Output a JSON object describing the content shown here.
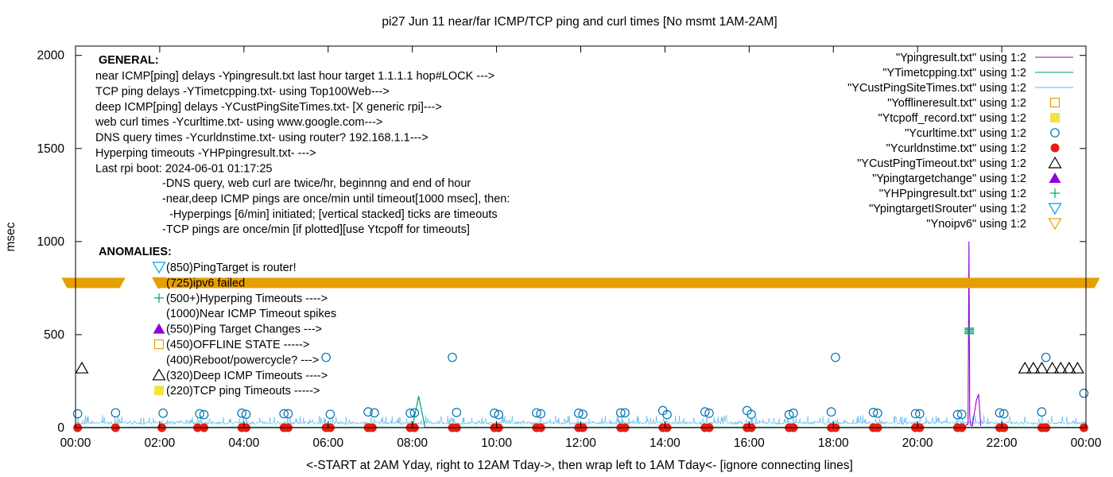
{
  "chart_data": {
    "type": "scatter",
    "title": "pi27 Jun 11  near/far ICMP/TCP ping and curl times [No msmt 1AM-2AM]",
    "xlabel": "<-START at 2AM Yday, right to 12AM Tday->, then wrap left to 1AM Tday<- [ignore connecting lines]",
    "ylabel": "msec",
    "xlim": [
      0,
      24
    ],
    "ylim": [
      0,
      2050
    ],
    "x_ticks": [
      0,
      2,
      4,
      6,
      8,
      10,
      12,
      14,
      16,
      18,
      20,
      22,
      24
    ],
    "x_tick_labels": [
      "00:00",
      "02:00",
      "04:00",
      "06:00",
      "08:00",
      "10:00",
      "12:00",
      "14:00",
      "16:00",
      "18:00",
      "20:00",
      "22:00",
      "00:00"
    ],
    "y_ticks": [
      0,
      500,
      1000,
      1500,
      2000
    ],
    "y_tick_labels": [
      "0",
      "500",
      "1000",
      "1500",
      "2000"
    ],
    "grid": false,
    "legend_position": "top-right",
    "notes": {
      "general_heading": "GENERAL:",
      "general_lines": [
        "near ICMP[ping] delays -Ypingresult.txt last hour target 1.1.1.1 hop#LOCK --->",
        "TCP ping delays -YTimetcpping.txt- using Top100Web--->",
        "deep ICMP[ping] delays -YCustPingSiteTimes.txt- [X generic rpi]--->",
        "web curl times -Ycurltime.txt- using www.google.com--->",
        "DNS query times -Ycurldnstime.txt- using router? 192.168.1.1--->",
        "Hyperping timeouts -YHPpingresult.txt- --->",
        "Last rpi boot: 2024-06-01 01:17:25"
      ],
      "indented_lines": [
        "-DNS query, web curl are twice/hr, beginnng and end of hour",
        "-near,deep ICMP pings are once/min until timeout[1000 msec], then:",
        "-Hyperpings [6/min] initiated; [vertical stacked] ticks are timeouts",
        "-TCP pings are once/min [if plotted][use Ytcpoff for timeouts]"
      ],
      "anomalies_heading": "ANOMALIES:",
      "anomalies": [
        {
          "text": "(850)PingTarget is router!",
          "marker": "triangle-down-open",
          "color": "#009fd4"
        },
        {
          "text": "(725)ipv6 failed",
          "marker": "triangle-down-open",
          "color": "#e69f00"
        },
        {
          "text": "(500+)Hyperping Timeouts ---->",
          "marker": "plus",
          "color": "#009e73"
        },
        {
          "text": "(1000)Near ICMP Timeout spikes",
          "marker": "none",
          "color": "#000000"
        },
        {
          "text": "(550)Ping Target Changes --->",
          "marker": "triangle-up-filled",
          "color": "#9400d3"
        },
        {
          "text": "(450)OFFLINE STATE ----->",
          "marker": "square-open",
          "color": "#e69f00"
        },
        {
          "text": "(400)Reboot/powercycle? --->",
          "marker": "none",
          "color": "#000000"
        },
        {
          "text": "(320)Deep ICMP Timeouts ---->",
          "marker": "triangle-up-open",
          "color": "#000000"
        },
        {
          "text": "(220)TCP ping Timeouts ----->",
          "marker": "square-filled",
          "color": "#f0e442"
        }
      ]
    },
    "series": [
      {
        "name": "\"Ypingresult.txt\" using 1:2",
        "style": "line",
        "color": "#9400d3",
        "x": [
          21.0,
          21.1,
          21.15,
          21.2,
          21.22,
          21.24,
          21.26,
          21.3,
          21.4,
          21.45,
          21.5
        ],
        "y": [
          8,
          10,
          12,
          20,
          1000,
          60,
          15,
          10,
          150,
          180,
          10
        ]
      },
      {
        "name": "\"YTimetcpping.txt\" using 1:2",
        "style": "line",
        "color": "#009e73",
        "x": [
          0.05,
          1.0,
          2.05,
          3.0,
          4.0,
          5.0,
          6.0,
          7.0,
          8.0,
          8.15,
          8.3,
          9.0,
          10.0,
          11.0,
          12.0,
          13.0,
          14.0,
          15.0,
          16.0,
          17.0,
          18.0,
          19.0,
          20.0,
          21.0,
          22.0,
          23.0,
          24.0
        ],
        "y": [
          2,
          2,
          3,
          2,
          3,
          2,
          2,
          3,
          2,
          170,
          3,
          2,
          3,
          2,
          2,
          3,
          2,
          2,
          3,
          2,
          2,
          3,
          2,
          2,
          3,
          2,
          2
        ]
      },
      {
        "name": "\"YCustPingSiteTimes.txt\" using 1:2",
        "style": "noise",
        "color": "#56b4e9",
        "base": 28,
        "amplitude": 50
      },
      {
        "name": "\"Yofflineresult.txt\" using 1:2",
        "style": "square-open",
        "color": "#e69f00",
        "x": [],
        "y": []
      },
      {
        "name": "\"Ytcpoff_record.txt\" using 1:2",
        "style": "square-filled",
        "color": "#f0e442",
        "x": [],
        "y": []
      },
      {
        "name": "\"Ycurltime.txt\" using 1:2",
        "style": "circle-open",
        "color": "#0072b2",
        "x": [
          0.05,
          0.95,
          2.08,
          2.95,
          3.05,
          3.95,
          4.05,
          4.95,
          5.05,
          5.95,
          6.05,
          6.95,
          7.1,
          7.95,
          8.05,
          8.95,
          9.05,
          9.95,
          10.05,
          10.95,
          11.05,
          11.95,
          12.05,
          12.95,
          13.05,
          13.95,
          14.05,
          14.95,
          15.05,
          15.95,
          16.05,
          16.95,
          17.05,
          17.95,
          18.05,
          18.95,
          19.05,
          19.95,
          20.05,
          20.95,
          21.05,
          21.95,
          22.05,
          22.95,
          23.05,
          23.95
        ],
        "y": [
          75,
          80,
          78,
          75,
          70,
          78,
          72,
          75,
          75,
          378,
          72,
          85,
          80,
          78,
          80,
          378,
          82,
          78,
          70,
          80,
          75,
          78,
          72,
          80,
          80,
          92,
          70,
          85,
          78,
          92,
          72,
          70,
          78,
          85,
          378,
          82,
          78,
          75,
          75,
          70,
          72,
          80,
          75,
          85,
          378,
          185
        ]
      },
      {
        "name": "\"Ycurldnstime.txt\" using 1:2",
        "style": "circle-filled",
        "color": "#e51e10",
        "x": [
          0.05,
          0.95,
          2.05,
          2.9,
          3.05,
          3.95,
          4.05,
          4.95,
          5.05,
          5.95,
          6.05,
          6.95,
          7.05,
          7.95,
          8.05,
          8.95,
          9.05,
          9.95,
          10.05,
          10.95,
          11.05,
          11.95,
          12.05,
          12.95,
          13.05,
          13.95,
          14.05,
          14.95,
          15.05,
          15.95,
          16.05,
          16.95,
          17.05,
          17.95,
          18.05,
          18.95,
          19.05,
          19.95,
          20.05,
          20.95,
          21.05,
          21.95,
          22.05,
          22.95,
          23.05,
          23.95
        ],
        "y": [
          0,
          0,
          0,
          0,
          0,
          0,
          0,
          0,
          0,
          0,
          0,
          0,
          0,
          0,
          0,
          0,
          0,
          0,
          0,
          0,
          0,
          0,
          0,
          0,
          0,
          0,
          0,
          0,
          0,
          0,
          0,
          0,
          0,
          0,
          0,
          0,
          0,
          0,
          0,
          0,
          0,
          0,
          0,
          0,
          0,
          0
        ]
      },
      {
        "name": "\"YCustPingTimeout.txt\" using 1:2",
        "style": "triangle-up-open",
        "color": "#000000",
        "x": [
          0.15,
          22.55,
          22.75,
          22.95,
          23.2,
          23.4,
          23.6,
          23.8
        ],
        "y": [
          320,
          320,
          320,
          320,
          320,
          320,
          320,
          320
        ]
      },
      {
        "name": "\"Ypingtargetchange\" using 1:2",
        "style": "triangle-up-filled",
        "color": "#9400d3",
        "x": [],
        "y": []
      },
      {
        "name": "\"YHPpingresult.txt\" using 1:2",
        "style": "plus",
        "color": "#009e73",
        "x": [
          21.23,
          21.23,
          21.23,
          21.23,
          21.23
        ],
        "y": [
          505,
          512,
          520,
          528,
          535
        ]
      },
      {
        "name": "\"YpingtargetISrouter\" using 1:2",
        "style": "triangle-down-open",
        "color": "#009fd4",
        "x": [],
        "y": []
      },
      {
        "name": "\"Ynoipv6\" using 1:2",
        "style": "triangle-down-open",
        "color": "#e69f00",
        "x_band_segments": [
          [
            -0.2,
            1.05
          ],
          [
            1.95,
            24.2
          ]
        ],
        "y": 780
      }
    ]
  }
}
